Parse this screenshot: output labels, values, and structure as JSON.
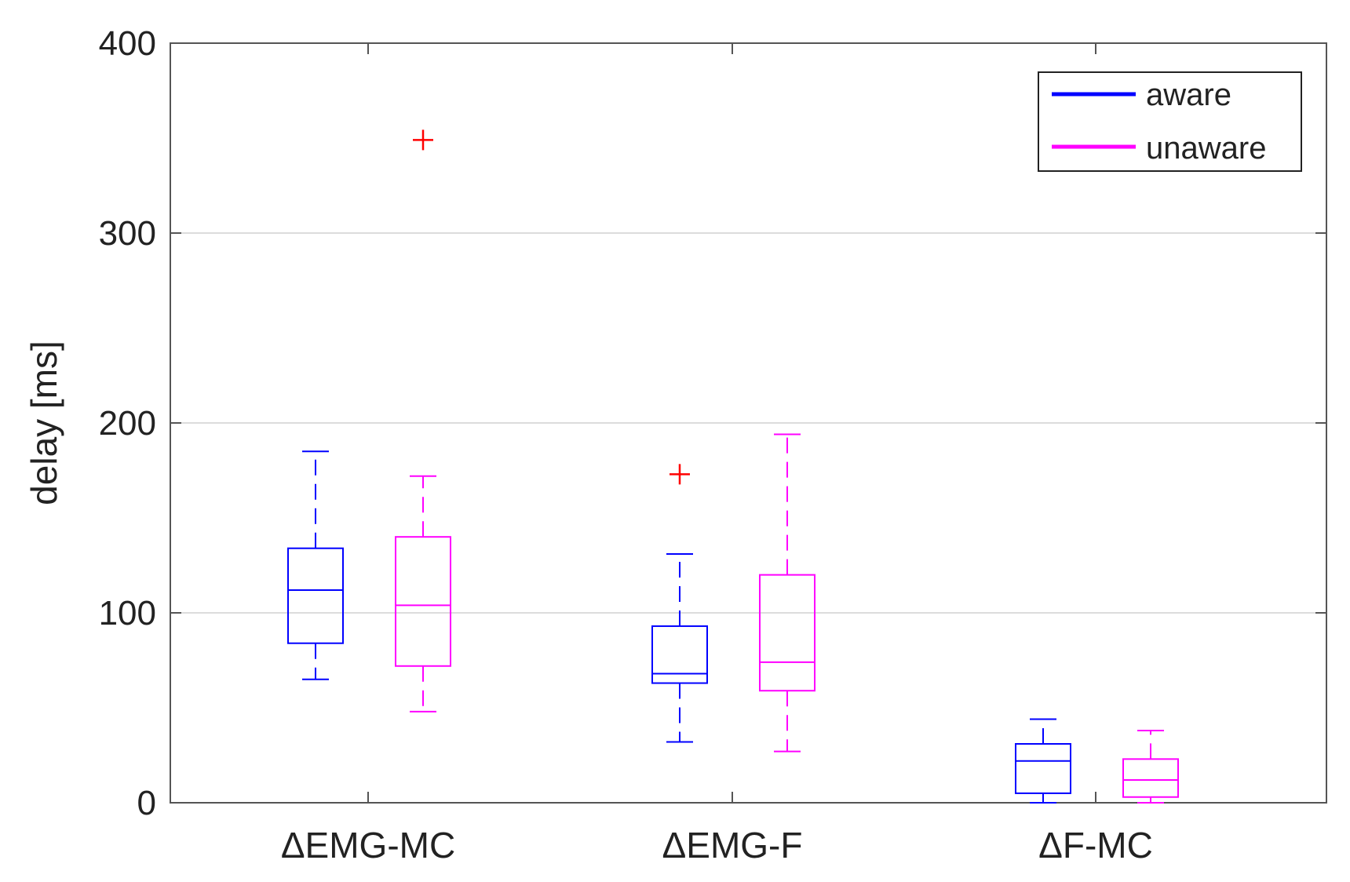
{
  "chart_data": {
    "type": "boxplot",
    "title": "",
    "xlabel": "",
    "ylabel": "delay [ms]",
    "ylim": [
      0,
      400
    ],
    "yticks": [
      0,
      100,
      200,
      300,
      400
    ],
    "ytick_labels": [
      "0",
      "100",
      "200",
      "300",
      "400"
    ],
    "grid": "y",
    "legend_position": "top-right",
    "categories": [
      "ΔEMG-MC",
      "ΔEMG-F",
      "ΔF-MC"
    ],
    "series": [
      {
        "name": "aware",
        "color": "#0000ff",
        "boxes": [
          {
            "whisker_low": 65,
            "q1": 84,
            "median": 112,
            "q3": 134,
            "whisker_high": 185,
            "outliers": []
          },
          {
            "whisker_low": 32,
            "q1": 63,
            "median": 68,
            "q3": 93,
            "whisker_high": 131,
            "outliers": [
              173
            ]
          },
          {
            "whisker_low": 0,
            "q1": 5,
            "median": 22,
            "q3": 31,
            "whisker_high": 44,
            "outliers": []
          }
        ]
      },
      {
        "name": "unaware",
        "color": "#ff00ff",
        "boxes": [
          {
            "whisker_low": 48,
            "q1": 72,
            "median": 104,
            "q3": 140,
            "whisker_high": 172,
            "outliers": [
              349
            ]
          },
          {
            "whisker_low": 27,
            "q1": 59,
            "median": 74,
            "q3": 120,
            "whisker_high": 194,
            "outliers": []
          },
          {
            "whisker_low": 0,
            "q1": 3,
            "median": 12,
            "q3": 23,
            "whisker_high": 38,
            "outliers": []
          }
        ]
      }
    ],
    "outlier_color": "#ff0000"
  }
}
